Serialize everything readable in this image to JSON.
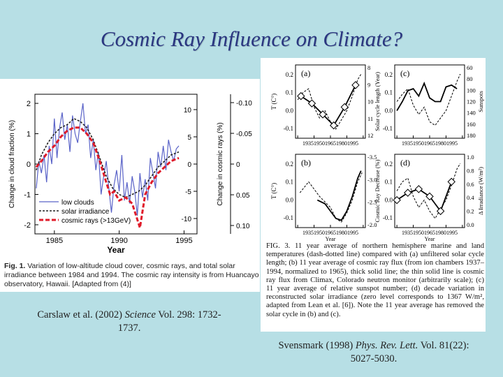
{
  "slide": {
    "title": "Cosmic Ray Influence on Climate?",
    "left_citation_a": "Carslaw et al. (2002) ",
    "left_citation_journal": "Science",
    "left_citation_b": " Vol. 298: 1732-1737.",
    "right_citation_a": "Svensmark (1998) ",
    "right_citation_journal": "Phys. Rev. Lett.",
    "right_citation_b": " Vol. 81(22): 5027-5030."
  },
  "left_figure": {
    "caption_label": "Fig. 1.",
    "caption_text": " Variation of low-altitude cloud cover, cosmic rays, and total solar irradiance between 1984 and 1994. The cosmic ray intensity is from Huancayo observatory, Hawaii. [Adapted from (4)]"
  },
  "right_figure": {
    "caption": "FIG. 3.   11 year average of northern hemisphere marine and land temperatures (dash-dotted line) compared with (a) unfiltered solar cycle length; (b) 11 year average of cosmic ray flux (from ion chambers 1937–1994, normalized to 1965), thick solid line; the thin solid line is cosmic ray flux from Climax, Colorado neutron monitor (arbitrarily scale); (c) 11 year average of relative sunspot number; (d) decade variation in reconstructed solar irradiance (zero level corresponds to 1367 W/m², adapted from Lean et al. [6]).  Note the 11 year average has removed the solar cycle in (b) and (c)."
  },
  "chart_data": [
    {
      "type": "line",
      "id": "carslaw_fig1",
      "xlabel": "Year",
      "ylabel": "Change in cloud fraction (%)",
      "y2label": "Change in cosmic rays (%)",
      "xlim": [
        1983.5,
        1996
      ],
      "ylim": [
        -2.3,
        2.3
      ],
      "xticks": [
        1985,
        1990,
        1995
      ],
      "yticks": [
        -2,
        -1,
        0,
        1,
        2
      ],
      "y2ticks": [
        "10",
        "5",
        "0",
        "-5",
        "-10"
      ],
      "y3ticks": [
        "-0.10",
        "-0.05",
        "0",
        "0.05",
        "0.10"
      ],
      "legend_position": "bottom-left",
      "series": [
        {
          "name": "low clouds",
          "color": "#5a63c8",
          "x": [
            1983.6,
            1983.8,
            1984.0,
            1984.2,
            1984.4,
            1984.6,
            1984.8,
            1985.0,
            1985.2,
            1985.4,
            1985.6,
            1985.8,
            1986.0,
            1986.2,
            1986.4,
            1986.6,
            1986.8,
            1987.0,
            1987.2,
            1987.4,
            1987.6,
            1987.8,
            1988.0,
            1988.2,
            1988.4,
            1988.6,
            1988.8,
            1989.0,
            1989.2,
            1989.4,
            1989.6,
            1989.8,
            1990.0,
            1990.2,
            1990.4,
            1990.6,
            1990.8,
            1991.0,
            1991.2,
            1991.4,
            1991.6,
            1991.8,
            1992.0,
            1992.2,
            1992.4,
            1992.6,
            1992.8,
            1993.0,
            1993.2,
            1993.4,
            1993.6,
            1993.8,
            1994.0,
            1994.2,
            1994.4,
            1994.6
          ],
          "values": [
            -0.8,
            0.1,
            -0.3,
            0.3,
            -0.6,
            0.6,
            0.0,
            1.5,
            0.2,
            1.2,
            1.7,
            0.8,
            1.3,
            0.4,
            1.6,
            1.0,
            0.7,
            1.4,
            2.0,
            1.0,
            1.3,
            0.2,
            0.8,
            -0.2,
            0.4,
            -1.0,
            -0.4,
            0.1,
            -0.8,
            -1.6,
            -0.7,
            -0.2,
            -0.9,
            0.3,
            -1.2,
            -0.6,
            -1.3,
            -0.4,
            -0.9,
            -1.7,
            -0.3,
            -1.1,
            -0.5,
            -1.2,
            0.2,
            -0.3,
            -0.8,
            0.4,
            -0.1,
            0.6,
            -0.2,
            0.8,
            0.4,
            0.1,
            0.5,
            0.6
          ]
        },
        {
          "name": "solar irradiance",
          "color": "#222222",
          "x": [
            1983.6,
            1984.0,
            1984.5,
            1985.0,
            1985.5,
            1986.0,
            1986.5,
            1987.0,
            1987.5,
            1988.0,
            1988.5,
            1989.0,
            1989.5,
            1990.0,
            1990.5,
            1991.0,
            1991.5,
            1992.0,
            1992.5,
            1993.0,
            1993.5,
            1994.0,
            1994.6
          ],
          "values": [
            -0.2,
            0.3,
            0.7,
            1.0,
            1.2,
            1.3,
            1.5,
            1.4,
            1.2,
            0.8,
            0.2,
            -0.4,
            -0.8,
            -1.0,
            -1.1,
            -1.0,
            -0.9,
            -0.7,
            -0.4,
            -0.1,
            0.1,
            0.3,
            0.4
          ]
        },
        {
          "name": "cosmic rays (>13GeV)",
          "color": "#e01b2a",
          "x": [
            1983.6,
            1984.0,
            1984.5,
            1985.0,
            1985.5,
            1986.0,
            1986.5,
            1987.0,
            1987.5,
            1988.0,
            1988.5,
            1989.0,
            1989.3,
            1989.6,
            1990.0,
            1990.5,
            1991.0,
            1991.3,
            1991.6,
            1992.0,
            1992.5,
            1993.0,
            1993.5,
            1994.0,
            1994.6
          ],
          "values": [
            -0.1,
            0.1,
            0.4,
            0.6,
            0.9,
            1.1,
            1.2,
            1.2,
            1.0,
            0.7,
            0.1,
            -0.6,
            -1.0,
            -0.9,
            -1.2,
            -1.1,
            -1.3,
            -1.7,
            -2.1,
            -1.0,
            -0.6,
            -0.3,
            -0.1,
            0.1,
            0.2
          ]
        }
      ]
    },
    {
      "type": "line",
      "id": "svensmark_a",
      "panel_label": "(a)",
      "ylabel": "T (C°)",
      "y2label": "Solar cycle length (Year)",
      "xticks": [
        1935,
        1950,
        1965,
        1980,
        1995
      ],
      "yticks": [
        "0.2",
        "0.1",
        "0.0",
        "-0.1"
      ],
      "y2ticks": [
        "8",
        "9",
        "10",
        "11",
        "12"
      ],
      "series": [
        {
          "name": "",
          "x": [
            1935,
            1940,
            1945,
            1950,
            1955,
            1960,
            1965,
            1970,
            1975,
            1980,
            1985,
            1990,
            1993
          ],
          "values": [
            0.06,
            0.1,
            0.12,
            0.02,
            -0.04,
            0.0,
            -0.06,
            -0.1,
            -0.05,
            0.0,
            0.08,
            0.17,
            0.2
          ]
        },
        {
          "name": "",
          "marker": "diamond",
          "x": [
            1938,
            1948,
            1958,
            1968,
            1978,
            1988
          ],
          "values": [
            0.08,
            0.04,
            -0.02,
            -0.08,
            0.02,
            0.14
          ]
        }
      ]
    },
    {
      "type": "line",
      "id": "svensmark_b",
      "panel_label": "(b)",
      "ylabel": "T (C°)",
      "y2label": "Cosmic Ray Decrease (%)",
      "xlabel": "Year",
      "xticks": [
        1935,
        1950,
        1965,
        1980,
        1995
      ],
      "yticks": [
        "0.2",
        "0.1",
        "0.0",
        "-0.1"
      ],
      "y2ticks": [
        "-3.5",
        "-3.0",
        "-2.5",
        "-2.0"
      ],
      "series": [
        {
          "name": "",
          "x": [
            1937,
            1945,
            1955,
            1965,
            1970,
            1975,
            1980,
            1985,
            1990,
            1994
          ],
          "values": [
            0.04,
            0.1,
            0.02,
            -0.04,
            -0.1,
            -0.12,
            -0.07,
            0.0,
            0.1,
            0.15
          ]
        },
        {
          "name": "",
          "x": [
            1953,
            1960,
            1965,
            1970,
            1975,
            1980,
            1985,
            1990,
            1993
          ],
          "values": [
            0.0,
            -0.02,
            -0.06,
            -0.1,
            -0.11,
            -0.06,
            0.02,
            0.12,
            0.16
          ]
        }
      ]
    },
    {
      "type": "line",
      "id": "svensmark_c",
      "panel_label": "(c)",
      "y2label": "Sunspots",
      "xticks": [
        1935,
        1950,
        1965,
        1980,
        1995
      ],
      "yticks": [
        "0.2",
        "0.1",
        "0.0",
        "-0.1"
      ],
      "y2ticks": [
        "60",
        "80",
        "100",
        "120",
        "140",
        "160",
        "180"
      ],
      "series": [
        {
          "name": "",
          "x": [
            1935,
            1940,
            1945,
            1950,
            1955,
            1960,
            1965,
            1970,
            1975,
            1980,
            1985,
            1990,
            1993
          ],
          "values": [
            0.05,
            0.09,
            0.12,
            0.03,
            -0.02,
            0.02,
            -0.06,
            -0.08,
            -0.04,
            0.0,
            0.08,
            0.16,
            0.2
          ]
        },
        {
          "name": "",
          "x": [
            1935,
            1940,
            1945,
            1950,
            1955,
            1960,
            1965,
            1970,
            1975,
            1980,
            1985,
            1990
          ],
          "values": [
            0.0,
            0.05,
            0.11,
            0.12,
            0.08,
            0.15,
            0.07,
            0.05,
            0.05,
            0.13,
            0.14,
            0.12
          ]
        }
      ]
    },
    {
      "type": "line",
      "id": "svensmark_d",
      "panel_label": "(d)",
      "y2label": "Δ Irradiance (W/m²)",
      "xlabel": "Year",
      "xticks": [
        1935,
        1950,
        1965,
        1980,
        1995
      ],
      "yticks": [
        "0.2",
        "0.1",
        "0.0",
        "-0.1"
      ],
      "y2ticks": [
        "1.0",
        "0.8",
        "0.6",
        "0.4",
        "0.2",
        "0.0"
      ],
      "series": [
        {
          "name": "",
          "x": [
            1935,
            1940,
            1945,
            1950,
            1955,
            1960,
            1965,
            1970,
            1975,
            1980,
            1985,
            1990,
            1993
          ],
          "values": [
            0.05,
            0.1,
            0.12,
            0.02,
            -0.04,
            0.0,
            -0.06,
            -0.1,
            -0.05,
            0.0,
            0.08,
            0.17,
            0.2
          ]
        },
        {
          "name": "",
          "marker": "diamond",
          "x": [
            1935,
            1945,
            1955,
            1965,
            1975,
            1985
          ],
          "values": [
            0.0,
            0.04,
            0.06,
            0.02,
            -0.06,
            0.1
          ]
        }
      ]
    }
  ]
}
